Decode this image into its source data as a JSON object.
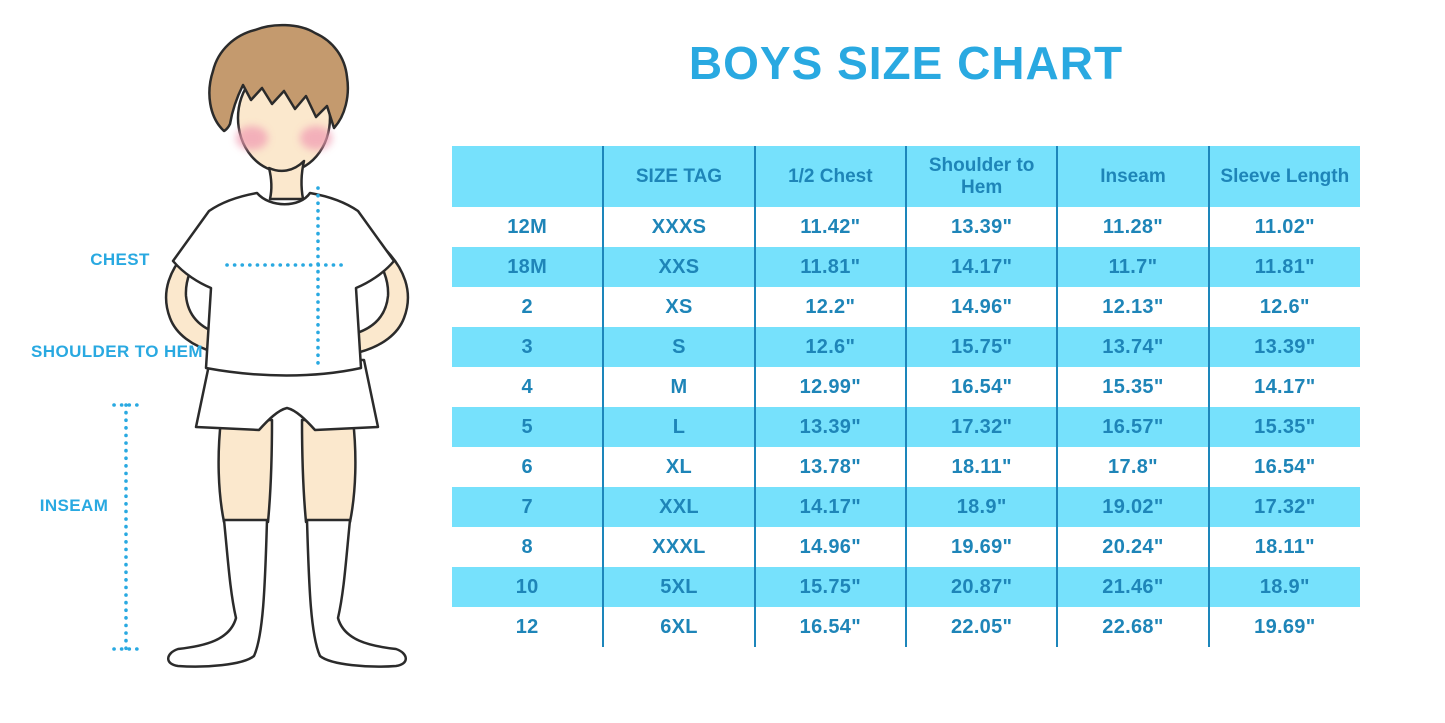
{
  "title": "BOYS SIZE CHART",
  "figure": {
    "labels": {
      "chest": "CHEST",
      "shoulder_to_hem": "SHOULDER TO HEM",
      "inseam": "INSEAM"
    }
  },
  "colors": {
    "accent_blue": "#29A9E1",
    "band_blue": "#76E1FC",
    "table_text_blue": "#1E85B8",
    "divider_blue": "#1D86BB",
    "hair_brown": "#C49A6E",
    "skin": "#FBE8CD",
    "blush_pink": "#F19EB4",
    "outline": "#2B2B2B"
  },
  "chart_data": {
    "type": "table",
    "title": "BOYS SIZE CHART",
    "columns": [
      "",
      "SIZE TAG",
      "1/2 Chest",
      "Shoulder to Hem",
      "Inseam",
      "Sleeve Length"
    ],
    "rows": [
      [
        "12M",
        "XXXS",
        "11.42\"",
        "13.39\"",
        "11.28\"",
        "11.02\""
      ],
      [
        "18M",
        "XXS",
        "11.81\"",
        "14.17\"",
        "11.7\"",
        "11.81\""
      ],
      [
        "2",
        "XS",
        "12.2\"",
        "14.96\"",
        "12.13\"",
        "12.6\""
      ],
      [
        "3",
        "S",
        "12.6\"",
        "15.75\"",
        "13.74\"",
        "13.39\""
      ],
      [
        "4",
        "M",
        "12.99\"",
        "16.54\"",
        "15.35\"",
        "14.17\""
      ],
      [
        "5",
        "L",
        "13.39\"",
        "17.32\"",
        "16.57\"",
        "15.35\""
      ],
      [
        "6",
        "XL",
        "13.78\"",
        "18.11\"",
        "17.8\"",
        "16.54\""
      ],
      [
        "7",
        "XXL",
        "14.17\"",
        "18.9\"",
        "19.02\"",
        "17.32\""
      ],
      [
        "8",
        "XXXL",
        "14.96\"",
        "19.69\"",
        "20.24\"",
        "18.11\""
      ],
      [
        "10",
        "5XL",
        "15.75\"",
        "20.87\"",
        "21.46\"",
        "18.9\""
      ],
      [
        "12",
        "6XL",
        "16.54\"",
        "22.05\"",
        "22.68\"",
        "19.69\""
      ]
    ],
    "layout": {
      "striping": "alternating white / light-blue rows, light-blue header",
      "grid": "vertical dividers only, no outer border"
    }
  }
}
